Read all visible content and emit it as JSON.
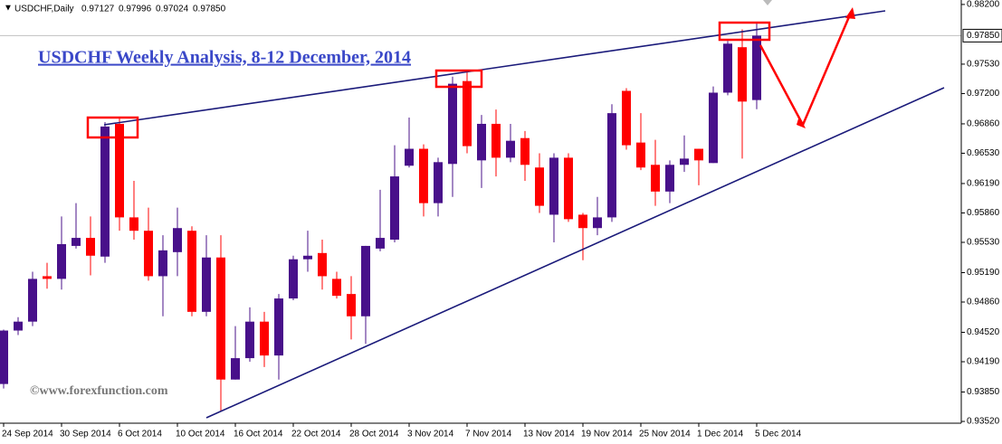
{
  "chart_data": {
    "type": "candlestick",
    "header": {
      "symbol": "USDCHF,Daily",
      "open": "0.97127",
      "high": "0.97996",
      "low": "0.97024",
      "close": "0.97850"
    },
    "title": "USDCHF Weekly Analysis, 8-12 December, 2014",
    "watermark": "©www.forexfunction.com",
    "up_color": "#48108a",
    "down_color": "#ff0000",
    "categories": [
      "24 Sep 2014",
      null,
      null,
      null,
      "30 Sep 2014",
      null,
      null,
      null,
      "6 Oct 2014",
      null,
      null,
      null,
      "10 Oct 2014",
      null,
      null,
      null,
      "16 Oct 2014",
      null,
      null,
      null,
      "22 Oct 2014",
      null,
      null,
      null,
      "28 Oct 2014",
      null,
      null,
      null,
      "3 Nov 2014",
      null,
      null,
      null,
      "7 Nov 2014",
      null,
      null,
      null,
      "13 Nov 2014",
      null,
      null,
      null,
      "19 Nov 2014",
      null,
      null,
      null,
      "25 Nov 2014",
      null,
      null,
      null,
      "1 Dec 2014",
      null,
      null,
      null,
      "5 Dec 2014"
    ],
    "open": [
      0.9394,
      0.9454,
      0.9464,
      0.9515,
      0.9512,
      0.9549,
      0.9558,
      0.9537,
      0.9686,
      0.9581,
      0.9566,
      0.9515,
      0.9542,
      0.9566,
      0.9475,
      0.9536,
      0.9399,
      0.9423,
      0.9464,
      0.9426,
      0.949,
      0.9534,
      0.9541,
      0.9512,
      0.9495,
      0.947,
      0.9546,
      0.9556,
      0.9639,
      0.9658,
      0.9597,
      0.9641,
      0.9734,
      0.9645,
      0.9686,
      0.9648,
      0.967,
      0.9637,
      0.9584,
      0.9648,
      0.9584,
      0.9569,
      0.9581,
      0.9723,
      0.9665,
      0.964,
      0.961,
      0.964,
      0.9658,
      0.9642,
      0.9721,
      0.9772,
      0.97127
    ],
    "high": [
      0.9455,
      0.9469,
      0.952,
      0.953,
      0.9582,
      0.9597,
      0.9582,
      0.9688,
      0.9693,
      0.9622,
      0.9592,
      0.9561,
      0.9592,
      0.9571,
      0.9561,
      0.9561,
      0.9459,
      0.948,
      0.9475,
      0.9495,
      0.9538,
      0.9566,
      0.9556,
      0.952,
      0.9515,
      0.9549,
      0.9612,
      0.9662,
      0.9693,
      0.9663,
      0.9648,
      0.9739,
      0.9744,
      0.9696,
      0.9702,
      0.9686,
      0.9678,
      0.9653,
      0.9653,
      0.9653,
      0.9586,
      0.9604,
      0.9708,
      0.9726,
      0.9698,
      0.9668,
      0.9645,
      0.9673,
      0.9658,
      0.9728,
      0.9779,
      0.9792,
      0.97996
    ],
    "low": [
      0.9389,
      0.9449,
      0.9459,
      0.9501,
      0.95,
      0.9546,
      0.9516,
      0.953,
      0.9566,
      0.9556,
      0.951,
      0.947,
      0.9515,
      0.947,
      0.947,
      0.9363,
      0.9399,
      0.9419,
      0.9413,
      0.9399,
      0.9488,
      0.952,
      0.95,
      0.949,
      0.9444,
      0.9439,
      0.9543,
      0.9553,
      0.9637,
      0.9582,
      0.9582,
      0.9604,
      0.9653,
      0.9614,
      0.9627,
      0.9643,
      0.9622,
      0.9586,
      0.9553,
      0.9576,
      0.9533,
      0.9561,
      0.9576,
      0.9657,
      0.9634,
      0.9594,
      0.9597,
      0.9632,
      0.9617,
      0.9642,
      0.9718,
      0.9647,
      0.97024
    ],
    "close": [
      0.9454,
      0.9464,
      0.9512,
      0.9512,
      0.9551,
      0.9558,
      0.9538,
      0.9683,
      0.9581,
      0.9566,
      0.9515,
      0.9544,
      0.9569,
      0.9475,
      0.9536,
      0.9399,
      0.9423,
      0.9464,
      0.9426,
      0.949,
      0.9534,
      0.9538,
      0.9515,
      0.9493,
      0.947,
      0.9549,
      0.9558,
      0.9627,
      0.9658,
      0.9597,
      0.9643,
      0.9731,
      0.9661,
      0.9686,
      0.9648,
      0.9667,
      0.964,
      0.9594,
      0.9648,
      0.9579,
      0.9569,
      0.9581,
      0.9698,
      0.9662,
      0.9637,
      0.961,
      0.964,
      0.9647,
      0.9645,
      0.9721,
      0.9776,
      0.9711,
      0.9785
    ],
    "ylim": [
      0.935,
      0.9825
    ],
    "yticks": [
      {
        "value": 0.982,
        "label": "0.98200"
      },
      {
        "value": 0.9753,
        "label": "0.97530"
      },
      {
        "value": 0.972,
        "label": "0.97200"
      },
      {
        "value": 0.9686,
        "label": "0.96860"
      },
      {
        "value": 0.9653,
        "label": "0.96530"
      },
      {
        "value": 0.9619,
        "label": "0.96190"
      },
      {
        "value": 0.9586,
        "label": "0.95860"
      },
      {
        "value": 0.9553,
        "label": "0.95530"
      },
      {
        "value": 0.9519,
        "label": "0.95190"
      },
      {
        "value": 0.9486,
        "label": "0.94860"
      },
      {
        "value": 0.9452,
        "label": "0.94520"
      },
      {
        "value": 0.9419,
        "label": "0.94190"
      },
      {
        "value": 0.9385,
        "label": "0.93850"
      },
      {
        "value": 0.9352,
        "label": "0.93520"
      }
    ],
    "last_price": {
      "value": 0.9785,
      "label": "0.97850"
    }
  }
}
